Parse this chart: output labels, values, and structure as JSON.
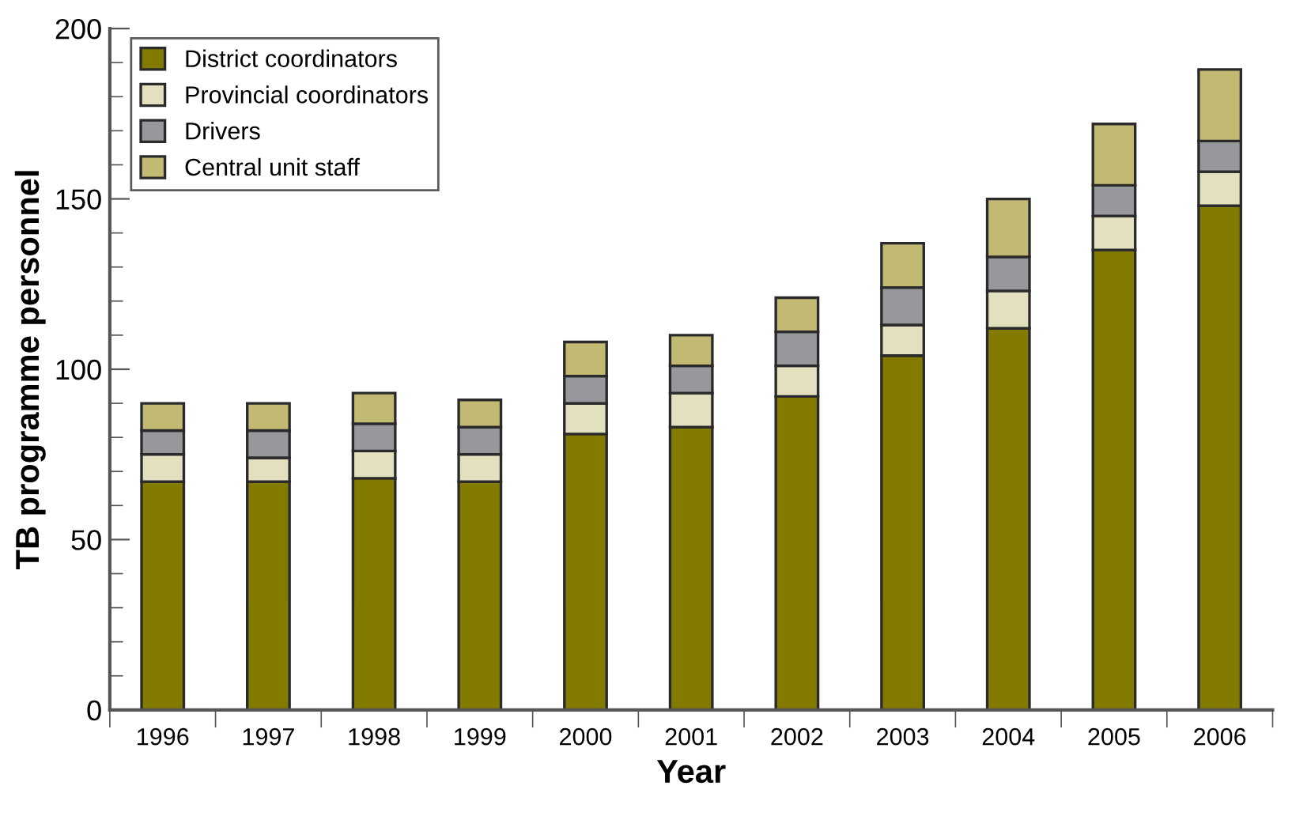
{
  "chart_data": {
    "type": "bar",
    "stacked": true,
    "xlabel": "Year",
    "ylabel": "TB programme personnel",
    "categories": [
      "1996",
      "1997",
      "1998",
      "1999",
      "2000",
      "2001",
      "2002",
      "2003",
      "2004",
      "2005",
      "2006"
    ],
    "series": [
      {
        "name": "District coordinators",
        "color": "#837b00",
        "values": [
          67,
          67,
          68,
          67,
          81,
          83,
          92,
          104,
          112,
          135,
          148
        ]
      },
      {
        "name": "Provincial coordinators",
        "color": "#e3e0c0",
        "values": [
          8,
          7,
          8,
          8,
          9,
          10,
          9,
          9,
          11,
          10,
          10
        ]
      },
      {
        "name": "Drivers",
        "color": "#97989c",
        "values": [
          7,
          8,
          8,
          8,
          8,
          8,
          10,
          11,
          10,
          9,
          9
        ]
      },
      {
        "name": "Central unit staff",
        "color": "#c2b973",
        "values": [
          8,
          8,
          9,
          8,
          10,
          9,
          10,
          13,
          17,
          18,
          21
        ]
      }
    ],
    "ylim": [
      0,
      200
    ],
    "yticks": [
      0,
      50,
      100,
      150,
      200
    ],
    "grid": false,
    "legend": "top left"
  }
}
